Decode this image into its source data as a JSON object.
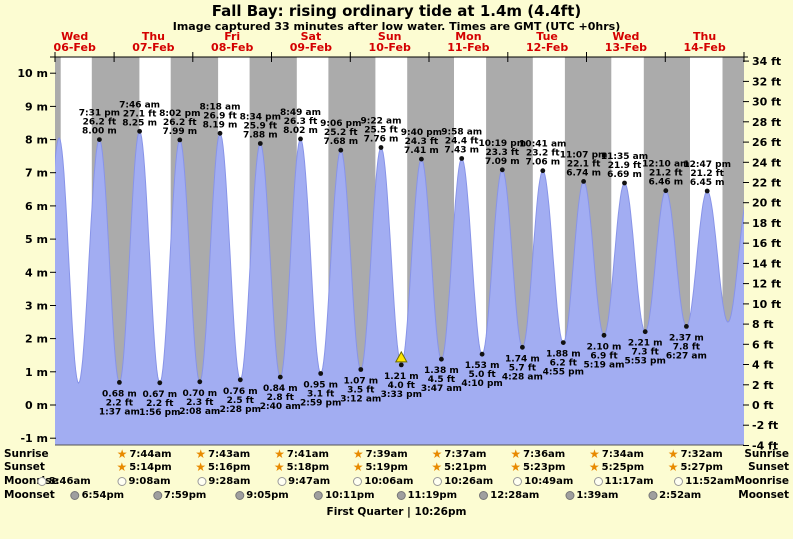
{
  "page": {
    "title": "Fall Bay: rising ordinary tide at 1.4m (4.4ft)",
    "subtitle": "Image captured 33 minutes after low water. Times are GMT (UTC +0hrs)",
    "footer": "First Quarter | 10:26pm"
  },
  "colors": {
    "background": "#fcfcd2",
    "plot_day": "#ffffff",
    "night_band": "#ababab",
    "tide_fill": "#a2adf2",
    "tide_stroke": "#8894e8",
    "day_label": "#d40000",
    "current_marker": "#ffe400",
    "star": "#e88a00",
    "moonrise_icon": "#fffff2",
    "moonset_icon": "#9f9f9f"
  },
  "chart_data": {
    "type": "area",
    "title": "Tide height over time for Fall Bay",
    "xlabel": "days 06-Feb to 14-Feb",
    "ylabel_left": "meters",
    "ylabel_right": "feet",
    "x_range_hours": [
      6,
      216
    ],
    "ylim_m": [
      -1.2,
      10.5
    ],
    "days": [
      {
        "weekday": "Wed",
        "date": "06-Feb"
      },
      {
        "weekday": "Thu",
        "date": "07-Feb"
      },
      {
        "weekday": "Fri",
        "date": "08-Feb"
      },
      {
        "weekday": "Sat",
        "date": "09-Feb"
      },
      {
        "weekday": "Sun",
        "date": "10-Feb"
      },
      {
        "weekday": "Mon",
        "date": "11-Feb"
      },
      {
        "weekday": "Tue",
        "date": "12-Feb"
      },
      {
        "weekday": "Wed",
        "date": "13-Feb"
      },
      {
        "weekday": "Thu",
        "date": "14-Feb"
      }
    ],
    "y_axis_m_labels": [
      "10 m",
      "9 m",
      "8 m",
      "7 m",
      "6 m",
      "5 m",
      "4 m",
      "3 m",
      "2 m",
      "1 m",
      "0 m",
      "-1 m"
    ],
    "y_axis_ft_labels": [
      "34 ft",
      "32 ft",
      "30 ft",
      "28 ft",
      "26 ft",
      "24 ft",
      "22 ft",
      "20 ft",
      "18 ft",
      "16 ft",
      "14 ft",
      "12 ft",
      "10 ft",
      "8 ft",
      "6 ft",
      "4 ft",
      "2 ft",
      "0 ft",
      "-2 ft",
      "-4 ft"
    ],
    "night_bands": [
      [
        6,
        7.75
      ],
      [
        17.23,
        31.73
      ],
      [
        41.27,
        55.72
      ],
      [
        65.3,
        79.68
      ],
      [
        89.32,
        103.65
      ],
      [
        113.35,
        127.62
      ],
      [
        137.38,
        151.6
      ],
      [
        161.42,
        175.57
      ],
      [
        185.45,
        199.53
      ],
      [
        209.45,
        216
      ]
    ],
    "extremes": [
      {
        "t": 1.0,
        "h": 0.72,
        "type": "edge"
      },
      {
        "t": 7.25,
        "h": 8.05,
        "type": "edge"
      },
      {
        "t": 13.17,
        "h": 0.66,
        "type": "edge"
      },
      {
        "t": 19.52,
        "h": 8.0,
        "type": "high",
        "time": "7:31 pm",
        "ft": "26.2 ft",
        "m": "8.00 m"
      },
      {
        "t": 25.62,
        "h": 0.68,
        "type": "low",
        "m": "0.68 m",
        "ft": "2.2 ft",
        "time": "1:37 am"
      },
      {
        "t": 31.77,
        "h": 8.25,
        "type": "high",
        "time": "7:46 am",
        "ft": "27.1 ft",
        "m": "8.25 m"
      },
      {
        "t": 37.93,
        "h": 0.67,
        "type": "low",
        "m": "0.67 m",
        "ft": "2.2 ft",
        "time": "1:56 pm"
      },
      {
        "t": 44.03,
        "h": 7.99,
        "type": "high",
        "time": "8:02 pm",
        "ft": "26.2 ft",
        "m": "7.99 m"
      },
      {
        "t": 50.13,
        "h": 0.7,
        "type": "low",
        "m": "0.70 m",
        "ft": "2.3 ft",
        "time": "2:08 am"
      },
      {
        "t": 56.3,
        "h": 8.19,
        "type": "high",
        "time": "8:18 am",
        "ft": "26.9 ft",
        "m": "8.19 m"
      },
      {
        "t": 62.47,
        "h": 0.76,
        "type": "low",
        "m": "0.76 m",
        "ft": "2.5 ft",
        "time": "2:28 pm"
      },
      {
        "t": 68.57,
        "h": 7.88,
        "type": "high",
        "time": "8:34 pm",
        "ft": "25.9 ft",
        "m": "7.88 m"
      },
      {
        "t": 74.67,
        "h": 0.84,
        "type": "low",
        "m": "0.84 m",
        "ft": "2.8 ft",
        "time": "2:40 am"
      },
      {
        "t": 80.82,
        "h": 8.02,
        "type": "high",
        "time": "8:49 am",
        "ft": "26.3 ft",
        "m": "8.02 m"
      },
      {
        "t": 86.98,
        "h": 0.95,
        "type": "low",
        "m": "0.95 m",
        "ft": "3.1 ft",
        "time": "2:59 pm"
      },
      {
        "t": 93.1,
        "h": 7.68,
        "type": "high",
        "time": "9:06 pm",
        "ft": "25.2 ft",
        "m": "7.68 m"
      },
      {
        "t": 99.2,
        "h": 1.07,
        "type": "low",
        "m": "1.07 m",
        "ft": "3.5 ft",
        "time": "3:12 am"
      },
      {
        "t": 105.37,
        "h": 7.76,
        "type": "high",
        "time": "9:22 am",
        "ft": "25.5 ft",
        "m": "7.76 m"
      },
      {
        "t": 111.55,
        "h": 1.21,
        "type": "low",
        "m": "1.21 m",
        "ft": "4.0 ft",
        "time": "3:33 pm",
        "current": true
      },
      {
        "t": 117.67,
        "h": 7.41,
        "type": "high",
        "time": "9:40 pm",
        "ft": "24.3 ft",
        "m": "7.41 m"
      },
      {
        "t": 123.78,
        "h": 1.38,
        "type": "low",
        "m": "1.38 m",
        "ft": "4.5 ft",
        "time": "3:47 am"
      },
      {
        "t": 129.97,
        "h": 7.43,
        "type": "high",
        "time": "9:58 am",
        "ft": "24.4 ft",
        "m": "7.43 m"
      },
      {
        "t": 136.17,
        "h": 1.53,
        "type": "low",
        "m": "1.53 m",
        "ft": "5.0 ft",
        "time": "4:10 pm"
      },
      {
        "t": 142.32,
        "h": 7.09,
        "type": "high",
        "time": "10:19 pm",
        "ft": "23.3 ft",
        "m": "7.09 m"
      },
      {
        "t": 148.47,
        "h": 1.74,
        "type": "low",
        "m": "1.74 m",
        "ft": "5.7 ft",
        "time": "4:28 am"
      },
      {
        "t": 154.68,
        "h": 7.06,
        "type": "high",
        "time": "10:41 am",
        "ft": "23.2 ft",
        "m": "7.06 m"
      },
      {
        "t": 160.92,
        "h": 1.88,
        "type": "low",
        "m": "1.88 m",
        "ft": "6.2 ft",
        "time": "4:55 pm"
      },
      {
        "t": 167.12,
        "h": 6.74,
        "type": "high",
        "time": "11:07 pm",
        "ft": "22.1 ft",
        "m": "6.74 m"
      },
      {
        "t": 173.32,
        "h": 2.1,
        "type": "low",
        "m": "2.10 m",
        "ft": "6.9 ft",
        "time": "5:19 am"
      },
      {
        "t": 179.58,
        "h": 6.69,
        "type": "high",
        "time": "11:35 am",
        "ft": "21.9 ft",
        "m": "6.69 m"
      },
      {
        "t": 185.88,
        "h": 2.21,
        "type": "low",
        "m": "2.21 m",
        "ft": "7.3 ft",
        "time": "5:53 pm"
      },
      {
        "t": 192.17,
        "h": 6.46,
        "type": "high",
        "time": "12:10 am",
        "ft": "21.2 ft",
        "m": "6.46 m"
      },
      {
        "t": 198.45,
        "h": 2.37,
        "type": "low",
        "m": "2.37 m",
        "ft": "7.8 ft",
        "time": "6:27 am"
      },
      {
        "t": 204.78,
        "h": 6.45,
        "type": "high",
        "time": "12:47 pm",
        "ft": "21.2 ft",
        "m": "6.45 m"
      },
      {
        "t": 211.1,
        "h": 2.5,
        "type": "edge"
      },
      {
        "t": 217.5,
        "h": 6.4,
        "type": "edge"
      }
    ]
  },
  "astro": {
    "labels": {
      "sunrise": "Sunrise",
      "sunset": "Sunset",
      "moonrise": "Moonrise",
      "moonset": "Moonset"
    },
    "sunrise": [
      {
        "time": "7:44am"
      },
      {
        "time": "7:43am"
      },
      {
        "time": "7:41am"
      },
      {
        "time": "7:39am"
      },
      {
        "time": "7:37am"
      },
      {
        "time": "7:36am"
      },
      {
        "time": "7:34am"
      },
      {
        "time": "7:32am"
      }
    ],
    "sunset": [
      {
        "time": "5:14pm"
      },
      {
        "time": "5:16pm"
      },
      {
        "time": "5:18pm"
      },
      {
        "time": "5:19pm"
      },
      {
        "time": "5:21pm"
      },
      {
        "time": "5:23pm"
      },
      {
        "time": "5:25pm"
      },
      {
        "time": "5:27pm"
      }
    ],
    "moonrise": [
      {
        "t": 8.77,
        "time": "8:46am"
      },
      {
        "t": 33.13,
        "time": "9:08am"
      },
      {
        "t": 57.47,
        "time": "9:28am"
      },
      {
        "t": 81.78,
        "time": "9:47am"
      },
      {
        "t": 106.1,
        "time": "10:06am"
      },
      {
        "t": 130.43,
        "time": "10:26am"
      },
      {
        "t": 154.82,
        "time": "10:49am"
      },
      {
        "t": 179.28,
        "time": "11:17am"
      },
      {
        "t": 203.87,
        "time": "11:52am"
      }
    ],
    "moonset": [
      {
        "t": 18.9,
        "time": "6:54pm"
      },
      {
        "t": 43.98,
        "time": "7:59pm"
      },
      {
        "t": 69.08,
        "time": "9:05pm"
      },
      {
        "t": 94.18,
        "time": "10:11pm"
      },
      {
        "t": 119.32,
        "time": "11:19pm"
      },
      {
        "t": 144.47,
        "time": "12:28am"
      },
      {
        "t": 169.65,
        "time": "1:39am"
      },
      {
        "t": 194.87,
        "time": "2:52am"
      }
    ]
  }
}
